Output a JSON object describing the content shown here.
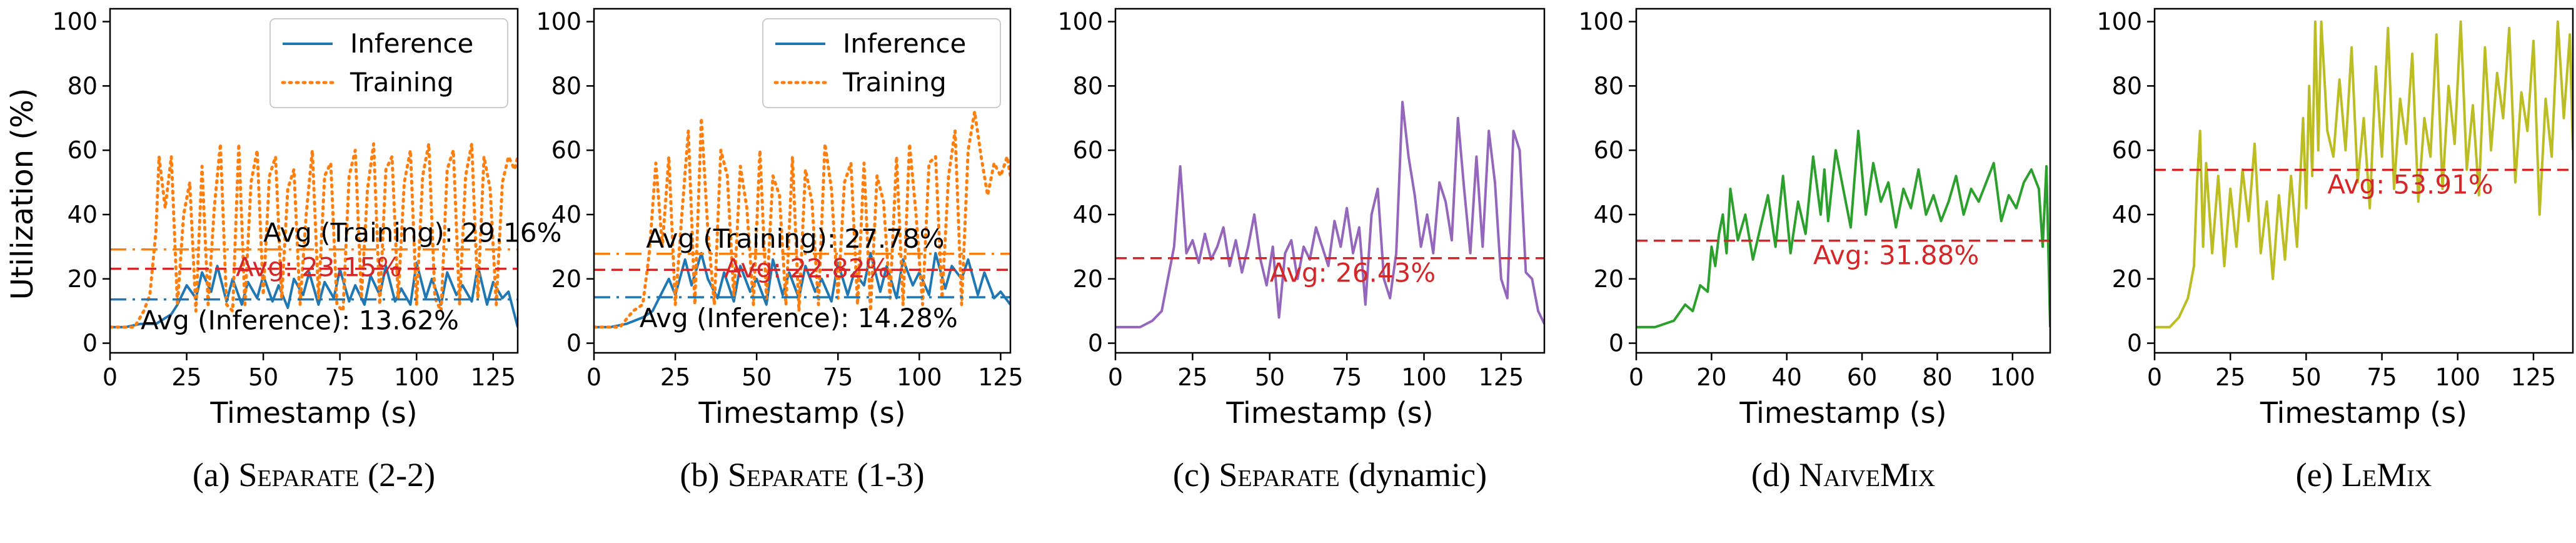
{
  "colors": {
    "inference": "#1f77b4",
    "training": "#ff7f0e",
    "avg_line": "#d62728",
    "avg_text": "#d62728",
    "dynamic": "#9467bd",
    "naivemix": "#2ca02c",
    "lemix": "#bcbd22"
  },
  "shared": {
    "xlabel": "Timestamp (s)",
    "ylabel": "Utilization (%)"
  },
  "chart_data": [
    {
      "type": "line",
      "caption": {
        "prefix": "(a) ",
        "name": "Separate",
        "suffix": " (2-2)"
      },
      "xlabel": "Timestamp (s)",
      "ylabel": "Utilization (%)",
      "xlim": [
        0,
        133
      ],
      "ylim": [
        -3,
        104
      ],
      "xticks": [
        0,
        25,
        50,
        75,
        100,
        125
      ],
      "yticks": [
        0,
        20,
        40,
        60,
        80,
        100
      ],
      "legend": {
        "position": "top-right",
        "entries": [
          "Inference",
          "Training"
        ]
      },
      "series": [
        {
          "name": "Inference",
          "style": "solid",
          "color": "#1f77b4",
          "x": [
            0,
            5,
            10,
            15,
            20,
            22,
            25,
            28,
            30,
            33,
            35,
            38,
            40,
            43,
            45,
            48,
            50,
            53,
            55,
            58,
            60,
            63,
            65,
            68,
            70,
            73,
            75,
            78,
            80,
            83,
            85,
            88,
            90,
            93,
            95,
            98,
            100,
            103,
            105,
            108,
            110,
            113,
            115,
            118,
            120,
            123,
            125,
            128,
            130,
            133
          ],
          "y": [
            5,
            5,
            6,
            6,
            9,
            12,
            18,
            14,
            22,
            16,
            24,
            13,
            20,
            12,
            19,
            14,
            21,
            13,
            18,
            11,
            20,
            15,
            22,
            12,
            19,
            14,
            23,
            13,
            18,
            12,
            21,
            15,
            24,
            13,
            17,
            12,
            25,
            14,
            20,
            12,
            22,
            15,
            18,
            13,
            24,
            12,
            19,
            14,
            16,
            5
          ]
        },
        {
          "name": "Training",
          "style": "dotted",
          "color": "#ff7f0e",
          "x": [
            0,
            8,
            11,
            13,
            15,
            16,
            18,
            20,
            22,
            24,
            26,
            28,
            30,
            32,
            34,
            36,
            38,
            40,
            42,
            44,
            46,
            48,
            50,
            52,
            54,
            56,
            58,
            60,
            62,
            64,
            66,
            68,
            70,
            72,
            74,
            76,
            78,
            80,
            82,
            84,
            86,
            88,
            90,
            92,
            94,
            96,
            98,
            100,
            102,
            104,
            106,
            108,
            110,
            112,
            114,
            116,
            118,
            120,
            122,
            124,
            126,
            128,
            130,
            132,
            133
          ],
          "y": [
            5,
            5,
            10,
            15,
            35,
            58,
            42,
            58,
            12,
            40,
            50,
            10,
            55,
            12,
            42,
            62,
            12,
            10,
            62,
            12,
            50,
            60,
            15,
            52,
            58,
            14,
            48,
            54,
            12,
            40,
            60,
            14,
            52,
            56,
            12,
            10,
            52,
            60,
            14,
            48,
            62,
            12,
            54,
            58,
            14,
            50,
            60,
            12,
            52,
            62,
            14,
            10,
            54,
            60,
            12,
            52,
            62,
            14,
            58,
            48,
            12,
            50,
            58,
            54,
            58
          ]
        }
      ],
      "averages": [
        {
          "label": "Avg (Training): 29.16%",
          "value": 29.16,
          "color": "#ff7f0e",
          "dash": "dashdot",
          "text_color": "#000"
        },
        {
          "label": "Avg: 23.15%",
          "value": 23.15,
          "color": "#d62728",
          "dash": "dashed",
          "text_color": "#d62728"
        },
        {
          "label": "Avg (Inference): 13.62%",
          "value": 13.62,
          "color": "#1f77b4",
          "dash": "dashdot",
          "text_color": "#000"
        }
      ]
    },
    {
      "type": "line",
      "caption": {
        "prefix": "(b) ",
        "name": "Separate",
        "suffix": " (1-3)"
      },
      "xlabel": "Timestamp (s)",
      "ylabel": "",
      "xlim": [
        0,
        128
      ],
      "ylim": [
        -3,
        104
      ],
      "xticks": [
        0,
        25,
        50,
        75,
        100,
        125
      ],
      "yticks": [
        0,
        20,
        40,
        60,
        80,
        100
      ],
      "legend": {
        "position": "top-right",
        "entries": [
          "Inference",
          "Training"
        ]
      },
      "series": [
        {
          "name": "Inference",
          "style": "solid",
          "color": "#1f77b4",
          "x": [
            0,
            5,
            10,
            15,
            18,
            20,
            23,
            25,
            28,
            30,
            33,
            35,
            38,
            40,
            43,
            45,
            48,
            50,
            53,
            55,
            58,
            60,
            63,
            65,
            68,
            70,
            73,
            75,
            78,
            80,
            83,
            85,
            88,
            90,
            93,
            95,
            98,
            100,
            103,
            105,
            108,
            110,
            113,
            115,
            118,
            120,
            123,
            125,
            128
          ],
          "y": [
            5,
            5,
            6,
            8,
            10,
            14,
            20,
            15,
            26,
            18,
            28,
            20,
            14,
            22,
            13,
            24,
            16,
            20,
            12,
            26,
            15,
            22,
            14,
            24,
            16,
            20,
            13,
            25,
            15,
            22,
            18,
            28,
            16,
            24,
            14,
            26,
            18,
            22,
            15,
            28,
            17,
            24,
            20,
            26,
            15,
            22,
            14,
            16,
            12
          ]
        },
        {
          "name": "Training",
          "style": "dotted",
          "color": "#ff7f0e",
          "x": [
            0,
            8,
            12,
            15,
            17,
            19,
            21,
            23,
            25,
            27,
            29,
            31,
            33,
            35,
            37,
            39,
            41,
            43,
            45,
            47,
            49,
            51,
            53,
            55,
            57,
            59,
            61,
            63,
            65,
            67,
            69,
            71,
            73,
            75,
            77,
            79,
            81,
            83,
            85,
            87,
            89,
            91,
            93,
            95,
            97,
            99,
            101,
            103,
            105,
            107,
            109,
            111,
            113,
            115,
            117,
            119,
            121,
            123,
            125,
            127,
            128
          ],
          "y": [
            5,
            5,
            10,
            12,
            28,
            56,
            30,
            58,
            12,
            40,
            66,
            12,
            70,
            35,
            12,
            60,
            52,
            14,
            55,
            42,
            12,
            60,
            14,
            52,
            46,
            12,
            58,
            10,
            54,
            44,
            12,
            62,
            48,
            14,
            50,
            56,
            12,
            56,
            10,
            52,
            44,
            14,
            58,
            12,
            62,
            40,
            12,
            56,
            58,
            14,
            52,
            66,
            12,
            60,
            72,
            58,
            46,
            56,
            52,
            58,
            52
          ]
        }
      ],
      "averages": [
        {
          "label": "Avg (Training): 27.78%",
          "value": 27.78,
          "color": "#ff7f0e",
          "dash": "dashdot",
          "text_color": "#000"
        },
        {
          "label": "Avg: 22.82%",
          "value": 22.82,
          "color": "#d62728",
          "dash": "dashed",
          "text_color": "#d62728"
        },
        {
          "label": "Avg (Inference): 14.28%",
          "value": 14.28,
          "color": "#1f77b4",
          "dash": "dashdot",
          "text_color": "#000"
        }
      ]
    },
    {
      "type": "line",
      "caption": {
        "prefix": "(c) ",
        "name": "Separate",
        "suffix": " (dynamic)"
      },
      "xlabel": "Timestamp (s)",
      "ylabel": "",
      "xlim": [
        0,
        139
      ],
      "ylim": [
        -3,
        104
      ],
      "xticks": [
        0,
        25,
        50,
        75,
        100,
        125
      ],
      "yticks": [
        0,
        20,
        40,
        60,
        80,
        100
      ],
      "series": [
        {
          "name": "",
          "style": "solid",
          "color": "#9467bd",
          "x": [
            0,
            8,
            12,
            15,
            17,
            19,
            21,
            23,
            25,
            27,
            29,
            31,
            33,
            35,
            37,
            39,
            41,
            43,
            45,
            47,
            49,
            51,
            53,
            55,
            57,
            59,
            61,
            63,
            65,
            67,
            69,
            71,
            73,
            75,
            77,
            79,
            81,
            83,
            85,
            87,
            89,
            91,
            93,
            95,
            97,
            99,
            101,
            103,
            105,
            107,
            109,
            111,
            113,
            115,
            117,
            119,
            121,
            123,
            125,
            127,
            129,
            131,
            133,
            135,
            137,
            139
          ],
          "y": [
            5,
            5,
            7,
            10,
            20,
            30,
            55,
            28,
            32,
            25,
            34,
            26,
            30,
            36,
            24,
            32,
            22,
            30,
            40,
            26,
            18,
            30,
            8,
            28,
            32,
            20,
            30,
            26,
            36,
            30,
            24,
            38,
            30,
            42,
            28,
            36,
            12,
            40,
            48,
            20,
            14,
            28,
            75,
            58,
            46,
            30,
            40,
            28,
            50,
            44,
            32,
            70,
            48,
            28,
            58,
            30,
            66,
            50,
            20,
            14,
            66,
            60,
            22,
            20,
            10,
            6
          ]
        }
      ],
      "averages": [
        {
          "label": "Avg: 26.43%",
          "value": 26.43,
          "color": "#d62728",
          "dash": "dashed",
          "text_color": "#d62728"
        }
      ]
    },
    {
      "type": "line",
      "caption": {
        "prefix": "(d) ",
        "name": "NaiveMix",
        "suffix": ""
      },
      "xlabel": "Timestamp (s)",
      "ylabel": "",
      "xlim": [
        0,
        110
      ],
      "ylim": [
        -3,
        104
      ],
      "xticks": [
        0,
        20,
        40,
        60,
        80,
        100
      ],
      "yticks": [
        0,
        20,
        40,
        60,
        80,
        100
      ],
      "series": [
        {
          "name": "",
          "style": "solid",
          "color": "#2ca02c",
          "x": [
            0,
            5,
            10,
            13,
            15,
            17,
            19,
            20,
            21,
            22,
            23,
            24,
            25,
            27,
            29,
            31,
            33,
            35,
            37,
            39,
            41,
            43,
            45,
            47,
            49,
            50,
            51,
            53,
            55,
            57,
            59,
            61,
            63,
            65,
            67,
            69,
            71,
            73,
            75,
            77,
            79,
            81,
            83,
            85,
            87,
            89,
            91,
            93,
            95,
            97,
            99,
            101,
            103,
            105,
            107,
            108,
            109,
            110
          ],
          "y": [
            5,
            5,
            7,
            12,
            10,
            18,
            16,
            30,
            24,
            34,
            40,
            28,
            48,
            32,
            40,
            26,
            36,
            46,
            30,
            52,
            28,
            44,
            34,
            58,
            40,
            54,
            38,
            60,
            48,
            36,
            66,
            40,
            56,
            44,
            50,
            36,
            48,
            42,
            54,
            40,
            46,
            38,
            44,
            52,
            40,
            48,
            44,
            50,
            56,
            38,
            46,
            42,
            50,
            54,
            48,
            30,
            55,
            5
          ]
        }
      ],
      "averages": [
        {
          "label": "Avg: 31.88%",
          "value": 31.88,
          "color": "#d62728",
          "dash": "dashed",
          "text_color": "#d62728"
        }
      ]
    },
    {
      "type": "line",
      "caption": {
        "prefix": "(e) ",
        "name": "LeMix",
        "suffix": ""
      },
      "xlabel": "Timestamp (s)",
      "ylabel": "",
      "xlim": [
        0,
        138
      ],
      "ylim": [
        -3,
        104
      ],
      "xticks": [
        0,
        25,
        50,
        75,
        100,
        125
      ],
      "yticks": [
        0,
        20,
        40,
        60,
        80,
        100
      ],
      "series": [
        {
          "name": "",
          "style": "solid",
          "color": "#bcbd22",
          "x": [
            0,
            5,
            8,
            11,
            13,
            14,
            15,
            16,
            17,
            19,
            21,
            23,
            25,
            27,
            29,
            31,
            33,
            35,
            37,
            39,
            41,
            43,
            45,
            47,
            49,
            50,
            51,
            52,
            53,
            54,
            55,
            57,
            59,
            61,
            63,
            65,
            67,
            69,
            71,
            73,
            75,
            77,
            79,
            81,
            83,
            85,
            87,
            89,
            91,
            93,
            95,
            97,
            99,
            101,
            103,
            105,
            107,
            109,
            111,
            113,
            115,
            117,
            119,
            121,
            123,
            125,
            127,
            129,
            131,
            133,
            135,
            137,
            138
          ],
          "y": [
            5,
            5,
            8,
            14,
            24,
            50,
            66,
            30,
            56,
            28,
            52,
            24,
            48,
            30,
            54,
            38,
            62,
            28,
            44,
            20,
            46,
            26,
            52,
            30,
            70,
            42,
            80,
            52,
            100,
            60,
            100,
            66,
            58,
            82,
            60,
            92,
            50,
            70,
            42,
            86,
            58,
            98,
            48,
            76,
            62,
            90,
            44,
            70,
            58,
            96,
            48,
            80,
            62,
            100,
            54,
            74,
            46,
            92,
            60,
            84,
            70,
            98,
            50,
            78,
            66,
            94,
            40,
            76,
            58,
            100,
            70,
            96,
            60
          ]
        }
      ],
      "averages": [
        {
          "label": "Avg: 53.91%",
          "value": 53.91,
          "color": "#d62728",
          "dash": "dashed",
          "text_color": "#d62728"
        }
      ]
    }
  ]
}
